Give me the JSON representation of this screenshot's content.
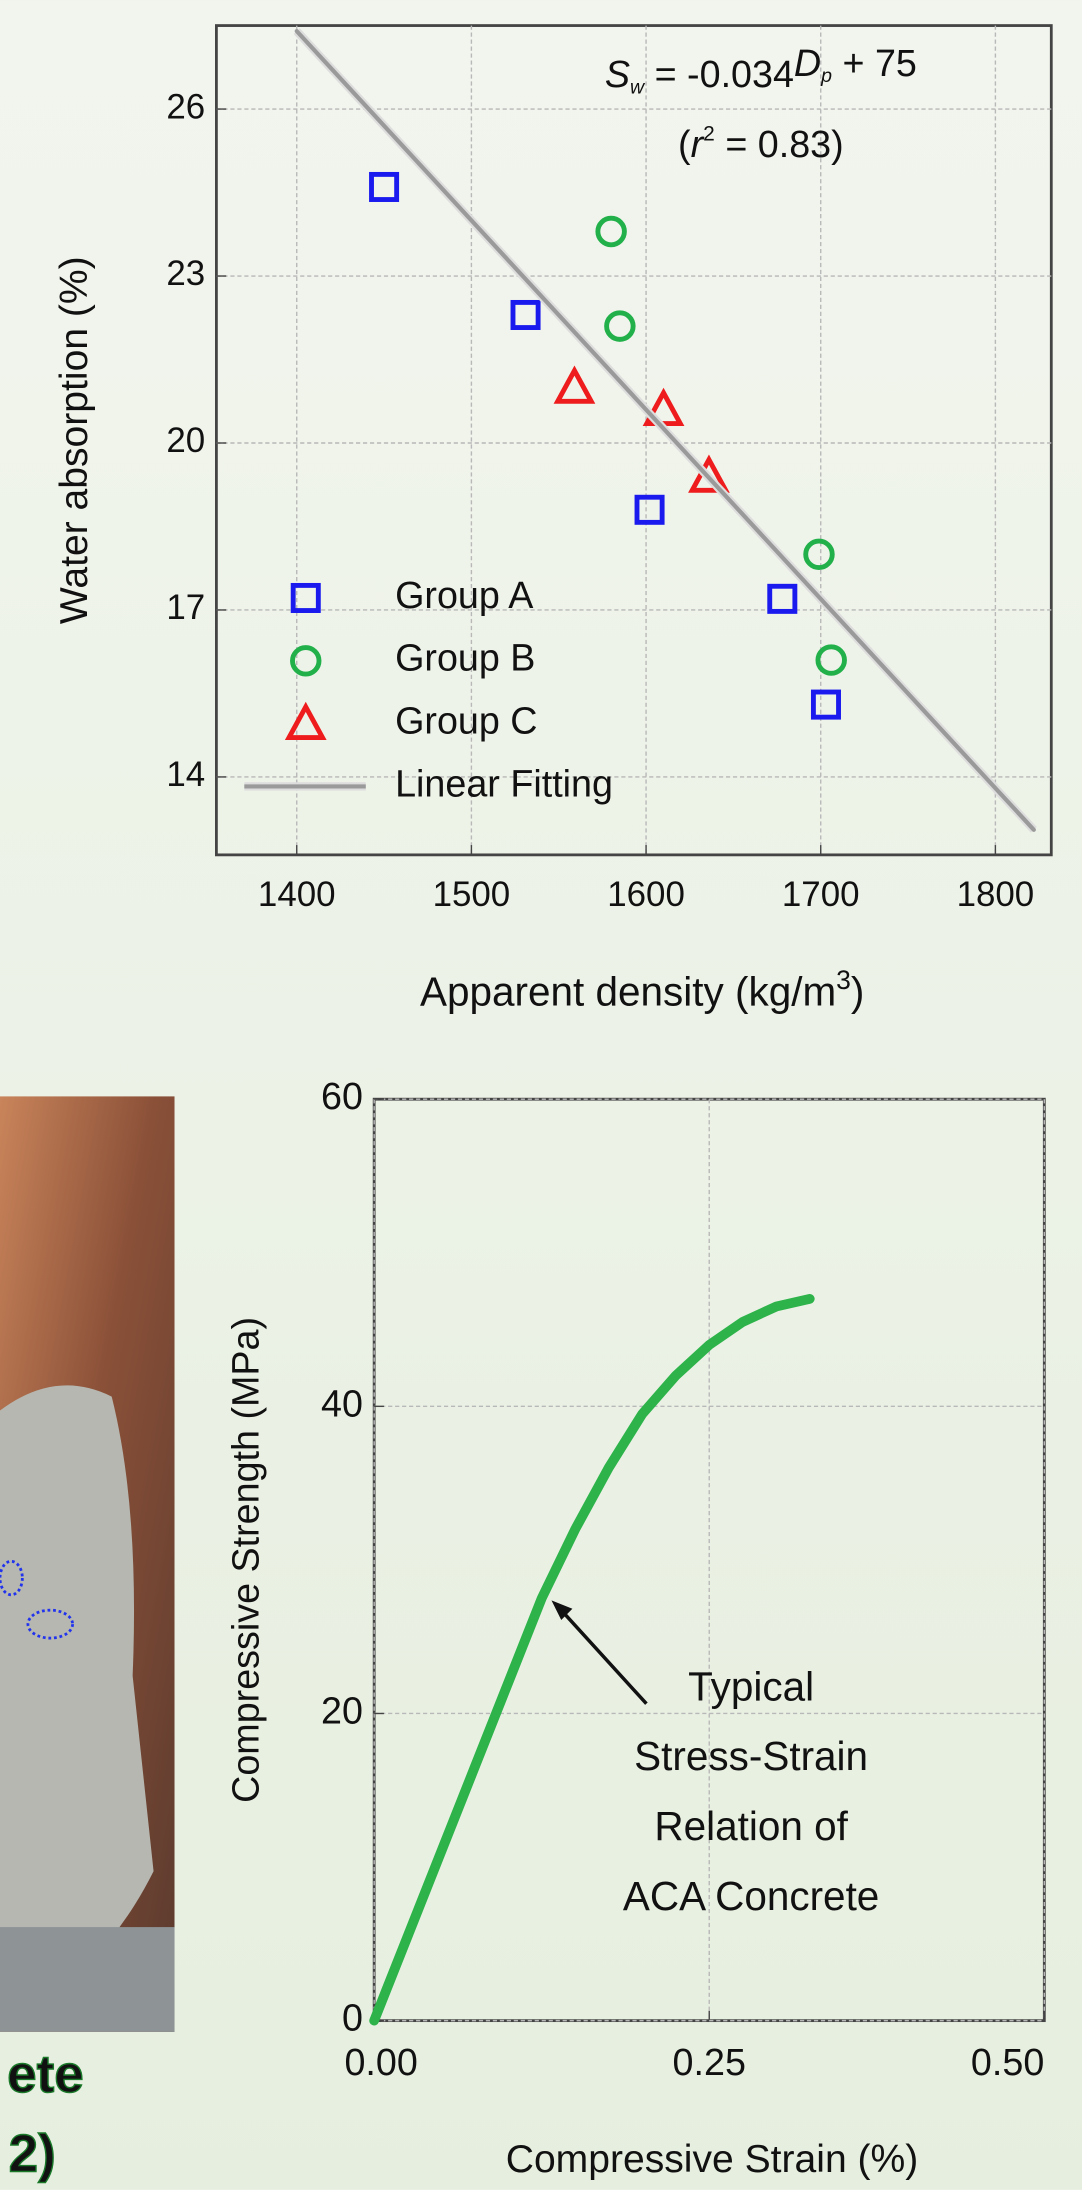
{
  "chart_data": [
    {
      "type": "scatter",
      "ylabel": "Water absorption (%)",
      "xlabel": [
        "Apparent density (kg/m",
        "3",
        ")"
      ],
      "xlim": [
        1354,
        1832
      ],
      "ylim": [
        12.6,
        27.5
      ],
      "xticks": [
        1400,
        1500,
        1600,
        1700,
        1800
      ],
      "yticks": [
        14,
        17,
        20,
        23,
        26
      ],
      "grid": true,
      "legend": "lower left",
      "annotations": [
        [
          "S",
          "w",
          " = -0.034",
          "D",
          "p",
          " + 75"
        ],
        [
          "(",
          "r",
          "2",
          " = 0.83)"
        ]
      ],
      "series": [
        {
          "name": "Group A",
          "color": "#1a1aee",
          "marker": "square",
          "x": [
            1450,
            1531,
            1602,
            1678,
            1703
          ],
          "values": [
            24.6,
            22.3,
            18.8,
            17.2,
            15.3
          ]
        },
        {
          "name": "Group B",
          "color": "#22b04a",
          "marker": "circle",
          "x": [
            1580,
            1585,
            1699,
            1706
          ],
          "values": [
            23.8,
            22.1,
            18.0,
            16.1
          ]
        },
        {
          "name": "Group C",
          "color": "#ee1c1c",
          "marker": "triangle",
          "x": [
            1559,
            1610,
            1636
          ],
          "values": [
            21.0,
            20.6,
            19.4
          ]
        },
        {
          "name": "Linear Fitting",
          "color": "#9a9a9a",
          "marker": "line",
          "x": [
            1400,
            1822
          ],
          "values": [
            27.4,
            13.05
          ]
        }
      ]
    },
    {
      "type": "line",
      "ylabel": "Compressive Strength (MPa)",
      "xlabel": "Compressive Strain (%)",
      "xlim": [
        0,
        0.5
      ],
      "ylim": [
        0,
        60
      ],
      "xticks": [
        {
          "value": 0,
          "label": "0.00"
        },
        {
          "value": 0.25,
          "label": "0.25"
        },
        {
          "value": 0.5,
          "label": "0.50"
        }
      ],
      "yticks": [
        0,
        20,
        40,
        60
      ],
      "grid": true,
      "annotation": [
        "Typical",
        "Stress-Strain",
        "Relation of",
        "ACA Concrete"
      ],
      "series": [
        {
          "color": "#2db34a",
          "x": [
            0,
            0.025,
            0.05,
            0.075,
            0.1,
            0.125,
            0.15,
            0.175,
            0.2,
            0.225,
            0.25,
            0.275,
            0.3,
            0.325
          ],
          "values": [
            0,
            5.5,
            11,
            16.5,
            22,
            27.5,
            32,
            36,
            39.5,
            42,
            44,
            45.5,
            46.5,
            47
          ]
        }
      ]
    }
  ],
  "photo": {
    "caption": [
      "ete",
      "2)"
    ]
  }
}
